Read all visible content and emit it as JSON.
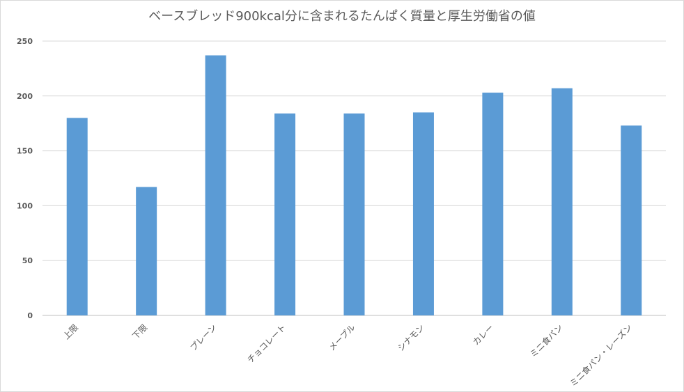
{
  "chart_data": {
    "type": "bar",
    "title": "ベースブレッド900kcal分に含まれるたんぱく質量と厚生労働省の値",
    "categories": [
      "上限",
      "下限",
      "プレーン",
      "チョコレート",
      "メープル",
      "シナモン",
      "カレー",
      "ミニ食パン",
      "ミニ食パン・レーズン"
    ],
    "values": [
      180,
      117,
      237,
      184,
      184,
      185,
      203,
      207,
      173
    ],
    "ylim": [
      0,
      250
    ],
    "yticks": [
      0,
      50,
      100,
      150,
      200,
      250
    ],
    "grid": true,
    "bar_color": "#5b9bd5"
  }
}
